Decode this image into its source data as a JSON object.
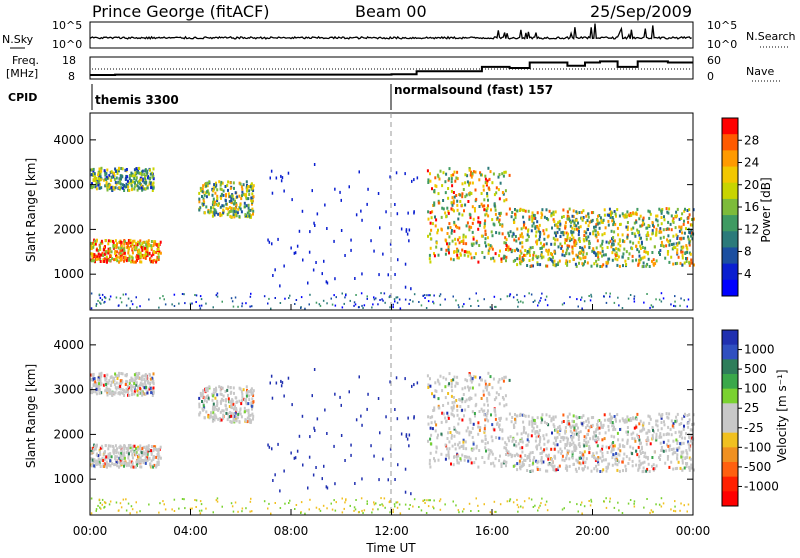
{
  "header": {
    "station": "Prince George (fitACF)",
    "beam": "Beam 00",
    "date": "25/Sep/2009"
  },
  "aux_panels": {
    "nsky_label": "N.Sky",
    "nsearch_label": "N.Search",
    "freq_label_line1": "Freq.",
    "freq_label_line2": "[MHz]",
    "nave_label": "Nave",
    "cpid_label": "CPID",
    "nsky_ticks": [
      "10^5",
      "10^0"
    ],
    "nsearch_ticks": [
      "10^5",
      "10^0"
    ],
    "freq_ticks": [
      "18",
      "8"
    ],
    "nave_ticks": [
      "60",
      "0"
    ],
    "cpid_segments": [
      {
        "start_hour": 0,
        "label": "themis 3300"
      },
      {
        "start_hour": 12,
        "label": "normalsound (fast) 157"
      }
    ],
    "freq_steps": [
      {
        "t": 0,
        "v": 0.18
      },
      {
        "t": 1,
        "v": 0.2
      },
      {
        "t": 12,
        "v": 0.22
      },
      {
        "t": 13,
        "v": 0.35
      },
      {
        "t": 15.6,
        "v": 0.55
      },
      {
        "t": 16.7,
        "v": 0.5
      },
      {
        "t": 17.5,
        "v": 0.75
      },
      {
        "t": 19,
        "v": 0.6
      },
      {
        "t": 19.7,
        "v": 0.75
      },
      {
        "t": 20.3,
        "v": 0.8
      },
      {
        "t": 21,
        "v": 0.55
      },
      {
        "t": 21.8,
        "v": 0.8
      },
      {
        "t": 23,
        "v": 0.75
      },
      {
        "t": 24,
        "v": 0.75
      }
    ]
  },
  "colorbars": {
    "power": {
      "label": "Power [dB]",
      "ticks": [
        "28",
        "24",
        "20",
        "16",
        "12",
        "8",
        "4"
      ],
      "colors": [
        "#ff0000",
        "#ff5a00",
        "#ff9a00",
        "#f2c700",
        "#c8d400",
        "#7dbb3a",
        "#3f9a62",
        "#2b7a7a",
        "#1b4fa0",
        "#0a1fd0",
        "#0000ff"
      ]
    },
    "velocity": {
      "label": "Velocity [m s⁻¹]",
      "ticks": [
        "1000",
        "500",
        "100",
        "25",
        "-25",
        "-100",
        "-500",
        "-1000"
      ],
      "colors": [
        "#2030b0",
        "#3050c0",
        "#2e7d5a",
        "#3aa84a",
        "#7ad230",
        "#c8c8c8",
        "#c8c8c8",
        "#f0c020",
        "#f09020",
        "#ff6010",
        "#ff2000",
        "#ff0000"
      ]
    }
  },
  "chart_data": [
    {
      "type": "heatmap",
      "name": "power",
      "ylabel": "Slant Range [km]",
      "xlim": [
        0,
        24
      ],
      "ylim": [
        200,
        4600
      ],
      "yticks": [
        "1000",
        "2000",
        "3000",
        "4000"
      ],
      "xticks": [
        "00:00",
        "04:00",
        "08:00",
        "12:00",
        "16:00",
        "20:00",
        "00:00"
      ],
      "colorbar_label": "Power [dB]",
      "regions": [
        {
          "t0": 0,
          "t1": 2.8,
          "r0": 1300,
          "r1": 1800,
          "level": 0.8
        },
        {
          "t0": 0,
          "t1": 2.5,
          "r0": 2900,
          "r1": 3400,
          "level": 0.4
        },
        {
          "t0": 4.3,
          "t1": 6.5,
          "r0": 2300,
          "r1": 3100,
          "level": 0.5
        },
        {
          "t0": 13.4,
          "t1": 16.7,
          "r0": 1300,
          "r1": 3400,
          "level": 0.65
        },
        {
          "t0": 16.7,
          "t1": 24,
          "r0": 1200,
          "r1": 2500,
          "level": 0.55
        }
      ]
    },
    {
      "type": "heatmap",
      "name": "velocity",
      "ylabel": "Slant Range [km]",
      "xlim": [
        0,
        24
      ],
      "ylim": [
        200,
        4600
      ],
      "yticks": [
        "1000",
        "2000",
        "3000",
        "4000"
      ],
      "xticks": [
        "00:00",
        "04:00",
        "08:00",
        "12:00",
        "16:00",
        "20:00",
        "00:00"
      ],
      "xlabel": "Time UT",
      "colorbar_label": "Velocity [m s⁻¹]"
    }
  ]
}
